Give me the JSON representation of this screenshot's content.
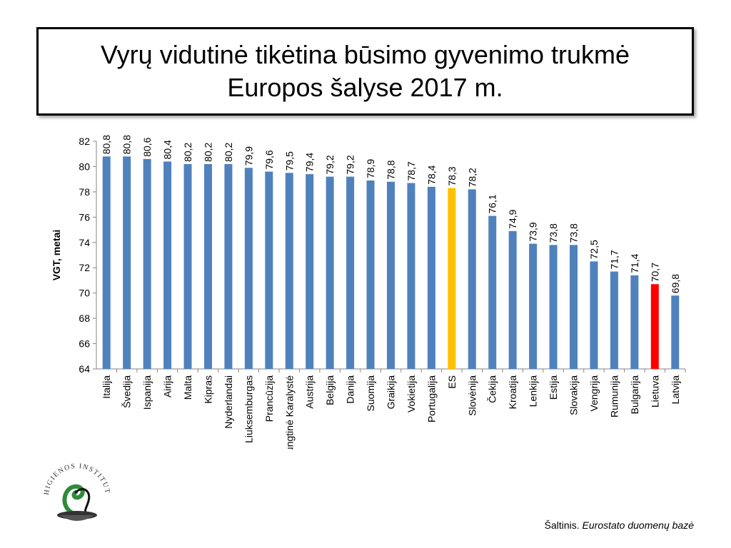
{
  "title": {
    "line1": "Vyrų vidutinė tikėtina būsimo gyvenimo trukmė",
    "line2": "Europos šalyse 2017 m."
  },
  "source": {
    "prefix": "Šaltinis. ",
    "name": "Eurostato duomenų bazė"
  },
  "logo": {
    "text": "HIGIENOS INSTITUTAS",
    "icon": "hygiene-institute-logo"
  },
  "chart_data": {
    "type": "bar",
    "ylabel": "VGT, metai",
    "xlabel": "",
    "ylim": [
      64,
      82
    ],
    "yticks": [
      64,
      66,
      68,
      70,
      72,
      74,
      76,
      78,
      80,
      82
    ],
    "grid": false,
    "categories": [
      "Italija",
      "Švedija",
      "Ispanija",
      "Airija",
      "Malta",
      "Kipras",
      "Nyderlandai",
      "Liuksemburgas",
      "Prancūzija",
      "Jungtinė Karalystė",
      "Austrija",
      "Belgija",
      "Danija",
      "Suomija",
      "Graikija",
      "Vokietija",
      "Portugalija",
      "ES",
      "Slovėnija",
      "Čekija",
      "Kroatija",
      "Lenkija",
      "Estija",
      "Slovakija",
      "Vengrija",
      "Rumunija",
      "Bulgarija",
      "Lietuva",
      "Latvija"
    ],
    "values": [
      80.8,
      80.8,
      80.6,
      80.4,
      80.2,
      80.2,
      80.2,
      79.9,
      79.6,
      79.5,
      79.4,
      79.2,
      79.2,
      78.9,
      78.8,
      78.7,
      78.4,
      78.3,
      78.2,
      76.1,
      74.9,
      73.9,
      73.8,
      73.8,
      72.5,
      71.7,
      71.4,
      70.7,
      69.8
    ],
    "value_labels": [
      "80,8",
      "80,8",
      "80,6",
      "80,4",
      "80,2",
      "80,2",
      "80,2",
      "79,9",
      "79,6",
      "79,5",
      "79,4",
      "79,2",
      "79,2",
      "78,9",
      "78,8",
      "78,7",
      "78,4",
      "78,3",
      "78,2",
      "76,1",
      "74,9",
      "73,9",
      "73,8",
      "73,8",
      "72,5",
      "71,7",
      "71,4",
      "70,7",
      "69,8"
    ],
    "colors": {
      "default": "#4F81BD",
      "ES": "#FFC000",
      "Lietuva": "#FF0000"
    }
  }
}
